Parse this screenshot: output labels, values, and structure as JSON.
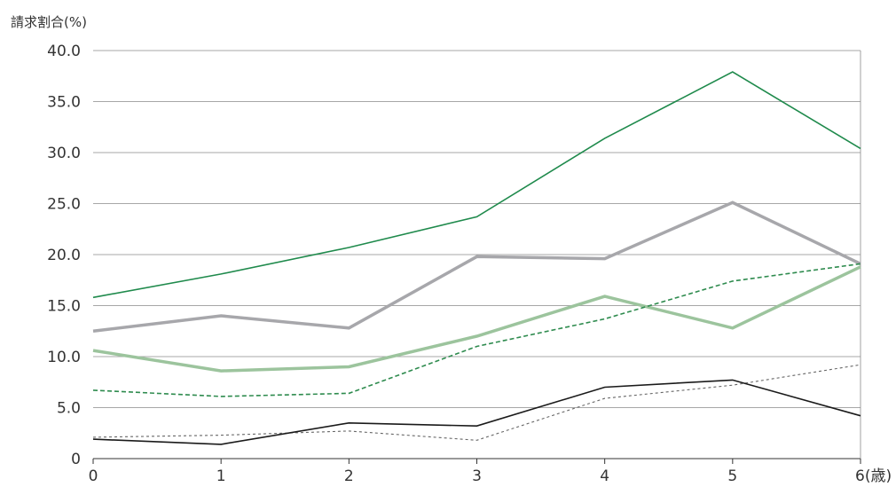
{
  "chart_data": {
    "type": "line",
    "title": "",
    "ylabel": "請求割合(%)",
    "xlabel": "",
    "x": [
      0,
      1,
      2,
      3,
      4,
      5,
      6
    ],
    "x_tick_labels": [
      "0",
      "1",
      "2",
      "3",
      "4",
      "5",
      "6(歳)"
    ],
    "y_tick_labels": [
      "0",
      "5.0",
      "10.0",
      "15.0",
      "20.0",
      "25.0",
      "30.0",
      "35.0",
      "40.0"
    ],
    "y_ticks": [
      0,
      5,
      10,
      15,
      20,
      25,
      30,
      35,
      40
    ],
    "ylim": [
      0,
      40
    ],
    "xlim": [
      0,
      6
    ],
    "grid": true,
    "legend": "none",
    "series": [
      {
        "values": [
          15.8,
          18.1,
          20.7,
          23.7,
          31.4,
          37.9,
          30.4
        ],
        "color": "#1f8a4c",
        "style": "solid",
        "weight": "thin"
      },
      {
        "values": [
          12.5,
          14.0,
          12.8,
          19.8,
          19.6,
          25.1,
          19.1
        ],
        "color": "#a7a7ab",
        "style": "solid",
        "weight": "thick"
      },
      {
        "values": [
          10.6,
          8.6,
          9.0,
          12.0,
          15.9,
          12.8,
          18.8
        ],
        "color": "#9cc49d",
        "style": "solid",
        "weight": "thick"
      },
      {
        "values": [
          6.7,
          6.1,
          6.4,
          11.0,
          13.7,
          17.4,
          19.1
        ],
        "color": "#2e8b4e",
        "style": "dashed",
        "weight": "thin"
      },
      {
        "values": [
          1.9,
          1.4,
          3.5,
          3.2,
          7.0,
          7.7,
          4.2
        ],
        "color": "#1a1a1a",
        "style": "solid",
        "weight": "thin"
      },
      {
        "values": [
          2.1,
          2.3,
          2.7,
          1.8,
          5.9,
          7.2,
          9.2
        ],
        "color": "#666666",
        "style": "dashed",
        "weight": "hair"
      }
    ]
  }
}
